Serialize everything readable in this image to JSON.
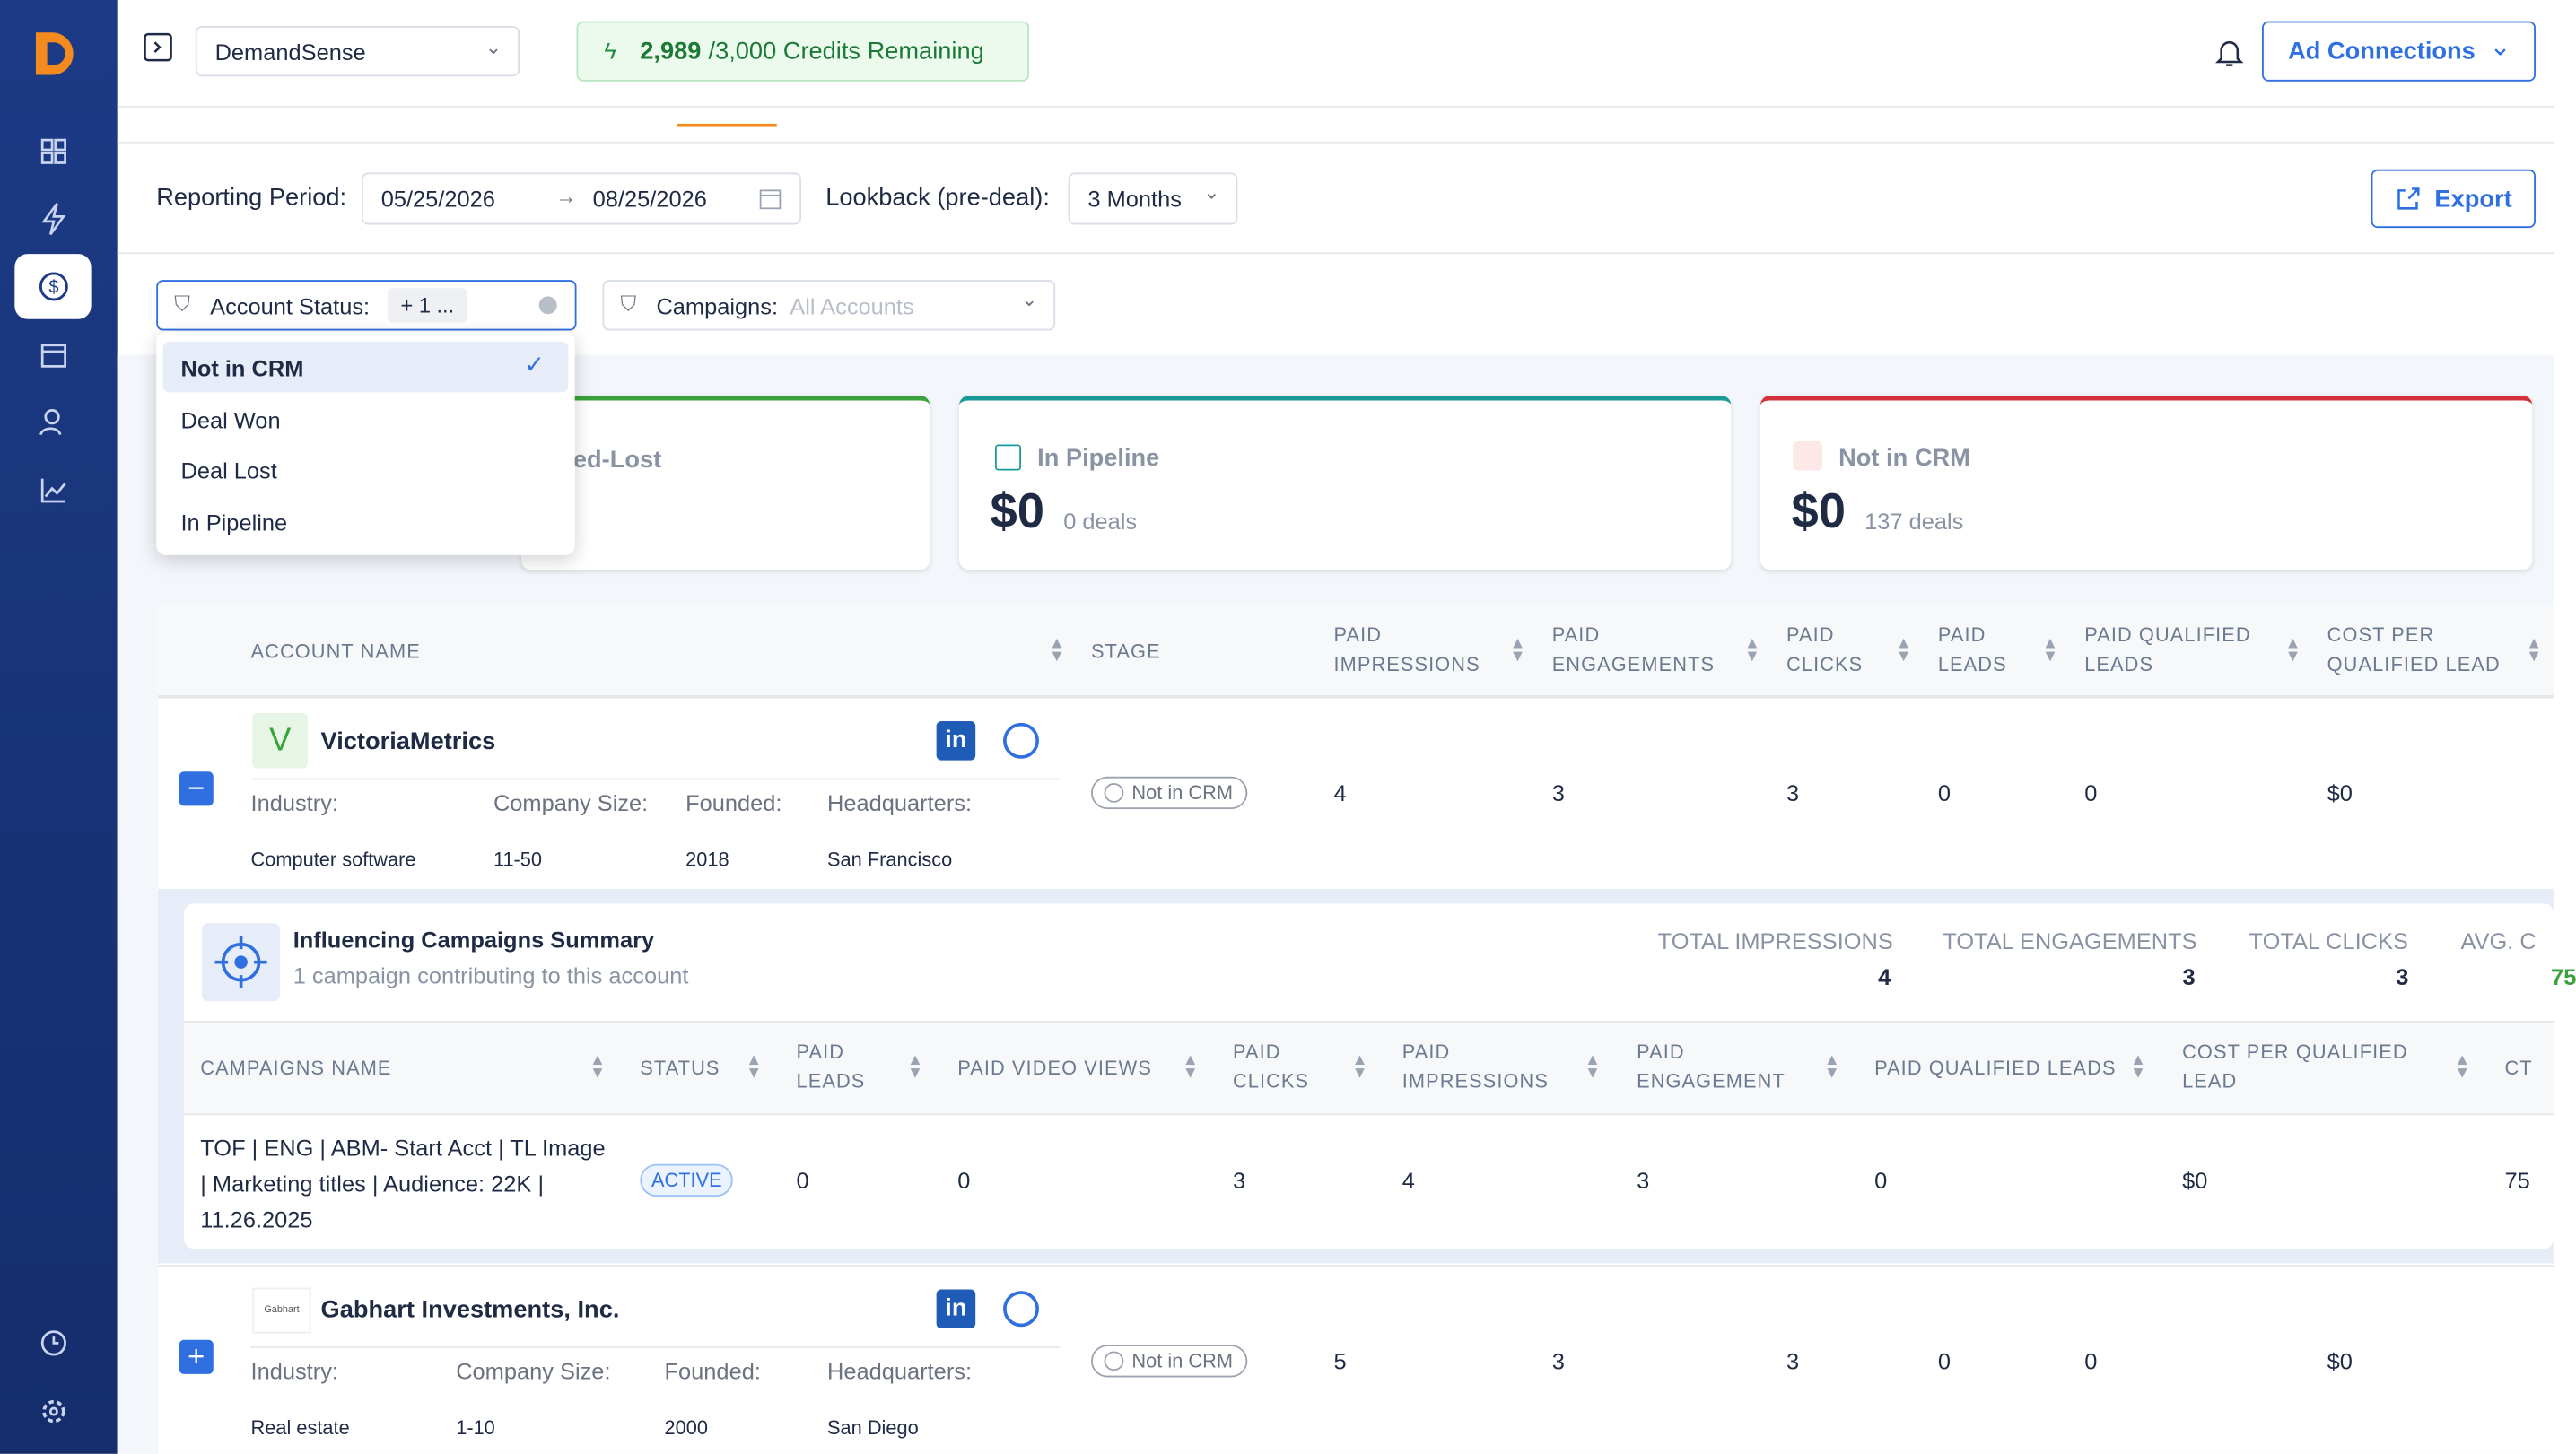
{
  "header": {
    "workspace": "DemandSense",
    "credits_used": "2,989",
    "credits_rest": "/3,000 Credits Remaining",
    "ad_connections": "Ad Connections"
  },
  "filters": {
    "reporting_label": "Reporting Period:",
    "start_date": "05/25/2026",
    "end_date": "08/25/2026",
    "lookback_label": "Lookback (pre-deal):",
    "lookback": "3 Months",
    "export": "Export",
    "account_status_label": "Account Status:",
    "account_status_chip": "+ 1 ...",
    "campaigns_label": "Campaigns:",
    "campaigns_placeholder": "All Accounts"
  },
  "dropdown": {
    "options": [
      "Not in CRM",
      "Deal Won",
      "Deal Lost",
      "In Pipeline"
    ]
  },
  "cards": [
    {
      "label": "ed-Lost"
    },
    {
      "label": "In Pipeline",
      "value": "$0",
      "sub": "0 deals"
    },
    {
      "label": "Not in CRM",
      "value": "$0",
      "sub": "137 deals"
    }
  ],
  "table": {
    "headers": [
      "ACCOUNT NAME",
      "STAGE",
      "PAID IMPRESSIONS",
      "PAID ENGAGEMENTS",
      "PAID CLICKS",
      "PAID LEADS",
      "PAID QUALIFIED LEADS",
      "COST PER QUALIFIED LEAD"
    ],
    "detail_labels": [
      "Industry:",
      "Company Size:",
      "Founded:",
      "Headquarters:"
    ],
    "rows": [
      {
        "name": "VictoriaMetrics",
        "logo": "V",
        "industry": "Computer software",
        "size": "11-50",
        "founded": "2018",
        "hq": "San Francisco",
        "stage": "Not in CRM",
        "metrics": [
          4,
          3,
          3,
          0,
          0,
          "$0"
        ]
      },
      {
        "name": "Gabhart Investments, Inc.",
        "logo": "Gabhart",
        "industry": "Real estate",
        "size": "1-10",
        "founded": "2000",
        "hq": "San Diego",
        "stage": "Not in CRM",
        "metrics": [
          5,
          3,
          3,
          0,
          0,
          "$0"
        ]
      }
    ]
  },
  "campaigns": {
    "title": "Influencing Campaigns Summary",
    "subtitle": "1 campaign contributing to this account",
    "totals": [
      {
        "label": "TOTAL IMPRESSIONS",
        "value": 4
      },
      {
        "label": "TOTAL ENGAGEMENTS",
        "value": 3
      },
      {
        "label": "TOTAL CLICKS",
        "value": 3
      },
      {
        "label": "AVG. C",
        "value": 75
      }
    ],
    "headers": [
      "CAMPAIGNS NAME",
      "STATUS",
      "PAID LEADS",
      "PAID VIDEO VIEWS",
      "PAID CLICKS",
      "PAID IMPRESSIONS",
      "PAID ENGAGEMENT",
      "PAID QUALIFIED LEADS",
      "COST PER QUALIFIED LEAD",
      "CT"
    ],
    "row": {
      "name": "TOF | ENG | ABM- Start Acct | TL Image | Marketing titles | Audience: 22K | 11.26.2025",
      "status": "ACTIVE",
      "values": [
        0,
        0,
        3,
        4,
        3,
        0,
        "$0",
        75
      ]
    }
  }
}
